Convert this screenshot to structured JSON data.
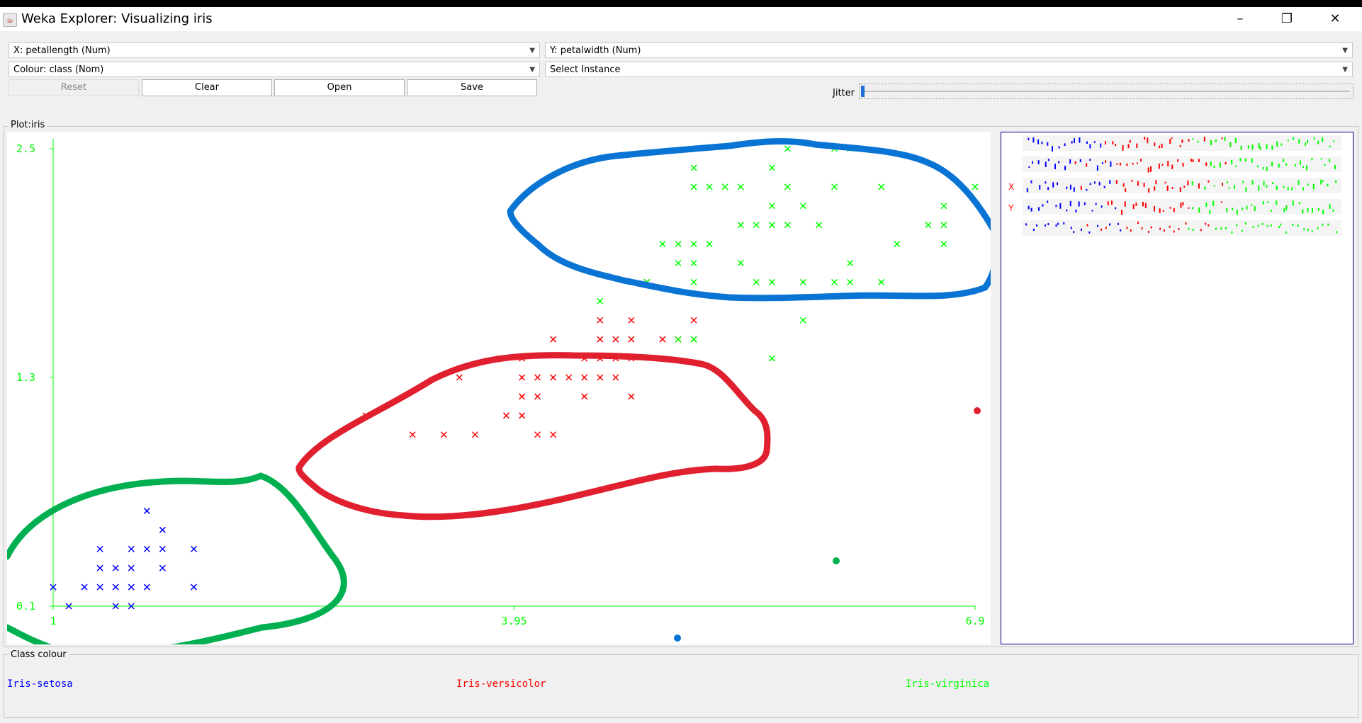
{
  "window": {
    "title": "Weka Explorer: Visualizing iris",
    "minimize_glyph": "–",
    "restore_glyph": "❐",
    "close_glyph": "✕"
  },
  "controls": {
    "x_axis": "X: petallength (Num)",
    "y_axis": "Y: petalwidth (Num)",
    "colour": "Colour: class (Nom)",
    "select_instance": "Select Instance",
    "reset_label": "Reset",
    "clear_label": "Clear",
    "open_label": "Open",
    "save_label": "Save",
    "jitter_label": "Jitter",
    "jitter_value": 0
  },
  "plot": {
    "group_label": "Plot:iris",
    "colors": {
      "setosa": "#0000ff",
      "versicolor": "#ff0000",
      "virginica": "#00ff00",
      "axis": "#00ff00"
    }
  },
  "chart_data": {
    "type": "scatter",
    "xlabel": "",
    "ylabel": "",
    "x_ticks": [
      "1",
      "3.95",
      "6.9"
    ],
    "y_ticks": [
      "2.5",
      "1.3",
      "0.1"
    ],
    "xlim": [
      1,
      6.9
    ],
    "ylim": [
      0.1,
      2.5
    ],
    "series": [
      {
        "name": "Iris-setosa",
        "color": "#0000ff",
        "points": [
          [
            1.0,
            0.2
          ],
          [
            1.1,
            0.1
          ],
          [
            1.2,
            0.2
          ],
          [
            1.3,
            0.2
          ],
          [
            1.4,
            0.2
          ],
          [
            1.5,
            0.2
          ],
          [
            1.6,
            0.2
          ],
          [
            1.9,
            0.2
          ],
          [
            1.3,
            0.3
          ],
          [
            1.4,
            0.3
          ],
          [
            1.5,
            0.3
          ],
          [
            1.7,
            0.3
          ],
          [
            1.3,
            0.4
          ],
          [
            1.5,
            0.4
          ],
          [
            1.6,
            0.4
          ],
          [
            1.7,
            0.4
          ],
          [
            1.9,
            0.4
          ],
          [
            1.7,
            0.5
          ],
          [
            1.6,
            0.6
          ],
          [
            1.4,
            0.1
          ],
          [
            1.5,
            0.1
          ]
        ]
      },
      {
        "name": "Iris-versicolor",
        "color": "#ff0000",
        "points": [
          [
            3.0,
            1.1
          ],
          [
            3.3,
            1.0
          ],
          [
            3.5,
            1.0
          ],
          [
            3.7,
            1.0
          ],
          [
            3.9,
            1.1
          ],
          [
            4.0,
            1.1
          ],
          [
            4.1,
            1.0
          ],
          [
            4.2,
            1.0
          ],
          [
            3.6,
            1.3
          ],
          [
            4.0,
            1.2
          ],
          [
            4.1,
            1.2
          ],
          [
            4.4,
            1.2
          ],
          [
            4.7,
            1.2
          ],
          [
            4.0,
            1.3
          ],
          [
            4.1,
            1.3
          ],
          [
            4.2,
            1.3
          ],
          [
            4.3,
            1.3
          ],
          [
            4.4,
            1.3
          ],
          [
            4.5,
            1.3
          ],
          [
            4.6,
            1.3
          ],
          [
            4.0,
            1.4
          ],
          [
            4.4,
            1.4
          ],
          [
            4.5,
            1.4
          ],
          [
            4.6,
            1.4
          ],
          [
            4.7,
            1.4
          ],
          [
            4.2,
            1.5
          ],
          [
            4.5,
            1.5
          ],
          [
            4.6,
            1.5
          ],
          [
            4.7,
            1.5
          ],
          [
            4.9,
            1.5
          ],
          [
            5.0,
            1.5
          ],
          [
            4.5,
            1.6
          ],
          [
            4.7,
            1.6
          ],
          [
            5.1,
            1.6
          ],
          [
            4.8,
            1.8
          ]
        ]
      },
      {
        "name": "Iris-virginica",
        "color": "#00ff00",
        "points": [
          [
            4.5,
            1.7
          ],
          [
            5.0,
            1.5
          ],
          [
            5.1,
            1.5
          ],
          [
            5.6,
            1.4
          ],
          [
            5.1,
            1.5
          ],
          [
            5.8,
            1.6
          ],
          [
            4.8,
            1.8
          ],
          [
            5.1,
            1.8
          ],
          [
            5.5,
            1.8
          ],
          [
            5.6,
            1.8
          ],
          [
            5.8,
            1.8
          ],
          [
            6.0,
            1.8
          ],
          [
            6.1,
            1.8
          ],
          [
            6.3,
            1.8
          ],
          [
            5.0,
            1.9
          ],
          [
            5.1,
            1.9
          ],
          [
            5.4,
            1.9
          ],
          [
            6.1,
            1.9
          ],
          [
            4.9,
            2.0
          ],
          [
            5.0,
            2.0
          ],
          [
            5.1,
            2.0
          ],
          [
            5.2,
            2.0
          ],
          [
            6.4,
            2.0
          ],
          [
            6.7,
            2.0
          ],
          [
            5.4,
            2.1
          ],
          [
            5.5,
            2.1
          ],
          [
            5.6,
            2.1
          ],
          [
            5.7,
            2.1
          ],
          [
            5.9,
            2.1
          ],
          [
            6.6,
            2.1
          ],
          [
            6.7,
            2.1
          ],
          [
            5.6,
            2.2
          ],
          [
            5.8,
            2.2
          ],
          [
            6.7,
            2.2
          ],
          [
            5.1,
            2.3
          ],
          [
            5.2,
            2.3
          ],
          [
            5.3,
            2.3
          ],
          [
            5.4,
            2.3
          ],
          [
            5.7,
            2.3
          ],
          [
            6.0,
            2.3
          ],
          [
            6.3,
            2.3
          ],
          [
            6.9,
            2.3
          ],
          [
            5.1,
            2.4
          ],
          [
            5.6,
            2.4
          ],
          [
            5.7,
            2.5
          ],
          [
            6.0,
            2.5
          ],
          [
            6.1,
            2.5
          ]
        ]
      }
    ]
  },
  "side_panel": {
    "x_marker": "X",
    "y_marker": "Y"
  },
  "legend": {
    "group_label": "Class colour",
    "items": [
      "Iris-setosa",
      "Iris-versicolor",
      "Iris-virginica"
    ]
  }
}
